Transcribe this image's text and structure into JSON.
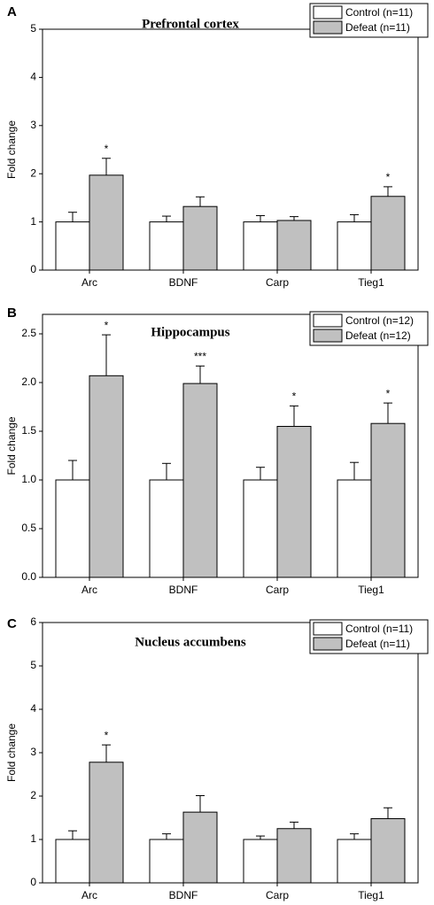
{
  "chart_data": [
    {
      "type": "bar",
      "panel": "A",
      "title": "Prefrontal cortex",
      "y_label": "Fold change",
      "categories": [
        "Arc",
        "BDNF",
        "Carp",
        "Tieg1"
      ],
      "series": [
        {
          "name": "Control (n=11)",
          "color": "#ffffff",
          "values": [
            1,
            1,
            1,
            1
          ],
          "errors": [
            0.2,
            0.12,
            0.13,
            0.15
          ],
          "significance": [
            null,
            null,
            null,
            null
          ]
        },
        {
          "name": "Defeat (n=11)",
          "color": "#c0c0c0",
          "values": [
            1.97,
            1.32,
            1.03,
            1.53
          ],
          "errors": [
            0.35,
            0.2,
            0.08,
            0.2
          ],
          "significance": [
            "*",
            null,
            null,
            "*"
          ]
        }
      ],
      "ylim": [
        0,
        5
      ],
      "yticks": [
        0,
        1,
        2,
        3,
        4,
        5
      ]
    },
    {
      "type": "bar",
      "panel": "B",
      "title": "Hippocampus",
      "y_label": "Fold change",
      "categories": [
        "Arc",
        "BDNF",
        "Carp",
        "Tieg1"
      ],
      "series": [
        {
          "name": "Control (n=12)",
          "color": "#ffffff",
          "values": [
            1,
            1,
            1,
            1
          ],
          "errors": [
            0.2,
            0.17,
            0.13,
            0.18
          ],
          "significance": [
            null,
            null,
            null,
            null
          ]
        },
        {
          "name": "Defeat (n=12)",
          "color": "#c0c0c0",
          "values": [
            2.07,
            1.99,
            1.55,
            1.58
          ],
          "errors": [
            0.42,
            0.18,
            0.21,
            0.21
          ],
          "significance": [
            "*",
            "***",
            "*",
            "*"
          ]
        }
      ],
      "ylim": [
        0,
        2.7
      ],
      "yticks": [
        {
          "value": 0,
          "label": "0.0"
        },
        {
          "value": 0.5,
          "label": "0.5"
        },
        {
          "value": 1,
          "label": "1.0"
        },
        {
          "value": 1.5,
          "label": "1.5"
        },
        {
          "value": 2,
          "label": "2.0"
        },
        {
          "value": 2.5,
          "label": "2.5"
        }
      ]
    },
    {
      "type": "bar",
      "panel": "C",
      "title": "Nucleus accumbens",
      "y_label": "Fold change",
      "categories": [
        "Arc",
        "BDNF",
        "Carp",
        "Tieg1"
      ],
      "series": [
        {
          "name": "Control (n=11)",
          "color": "#ffffff",
          "values": [
            1,
            1,
            1,
            1
          ],
          "errors": [
            0.2,
            0.13,
            0.08,
            0.13
          ],
          "significance": [
            null,
            null,
            null,
            null
          ]
        },
        {
          "name": "Defeat (n=11)",
          "color": "#c0c0c0",
          "values": [
            2.78,
            1.63,
            1.25,
            1.48
          ],
          "errors": [
            0.4,
            0.38,
            0.15,
            0.25
          ],
          "significance": [
            "*",
            null,
            null,
            null
          ]
        }
      ],
      "ylim": [
        0,
        6
      ],
      "yticks": [
        0,
        1,
        2,
        3,
        4,
        5,
        6
      ]
    }
  ]
}
